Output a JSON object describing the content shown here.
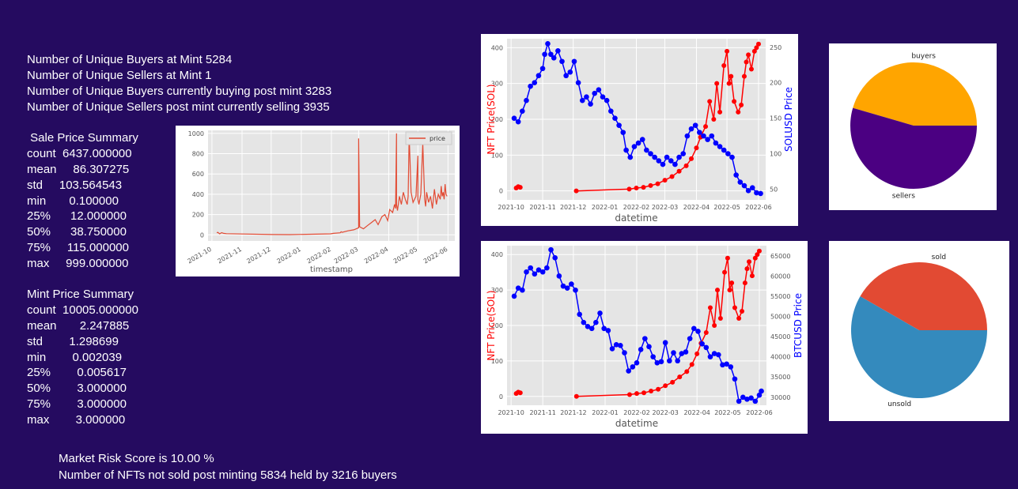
{
  "stats": {
    "unique_buyers_mint": "Number of Unique Buyers at Mint 5284",
    "unique_sellers_mint": "Number of Unique Sellers at Mint 1",
    "unique_buyers_post": "Number of Unique Buyers currently buying post mint 3283",
    "unique_sellers_post": "Number of Unique Sellers post mint currently selling 3935"
  },
  "sale_summary": {
    "title": " Sale Price Summary",
    "rows": [
      "count  6437.000000",
      "mean     86.307275",
      "std     103.564543",
      "min       0.100000",
      "25%      12.000000",
      "50%      38.750000",
      "75%     115.000000",
      "max     999.000000"
    ]
  },
  "mint_summary": {
    "title": "Mint Price Summary",
    "rows": [
      "count  10005.000000",
      "mean       2.247885",
      "std        1.298699",
      "min        0.002039",
      "25%        0.005617",
      "50%        3.000000",
      "75%        3.000000",
      "max        3.000000"
    ]
  },
  "footer": {
    "risk": "Market Risk Score is 10.00 %",
    "unsold": "Number of NFTs not sold post minting 5834 held by 3216 buyers"
  },
  "colors": {
    "background": "#250b60",
    "price_line": "#e24a33",
    "nft_red": "#ff0000",
    "sol_blue": "#0000ff",
    "buyers": "#ffa500",
    "sellers": "#4b0082",
    "sold": "#e24a33",
    "unsold": "#348abd",
    "plot_bg": "#e5e5e5"
  },
  "chart_data": [
    {
      "id": "sale",
      "type": "line",
      "title": "",
      "xlabel": "timestamp",
      "ylabel": "",
      "legend": [
        "price"
      ],
      "legend_position": "top-right",
      "x_ticks": [
        "2021-10",
        "2021-11",
        "2021-12",
        "2022-01",
        "2022-02",
        "2022-03",
        "2022-04",
        "2022-05",
        "2022-06"
      ],
      "y_ticks": [
        0,
        200,
        400,
        600,
        800,
        1000
      ],
      "xlim": [
        "2021-09-27",
        "2022-06-08"
      ],
      "ylim": [
        -60,
        1030
      ],
      "series": [
        {
          "name": "price",
          "x": [
            "2021-10-06",
            "2021-10-07",
            "2021-10-09",
            "2021-10-11",
            "2021-10-13",
            "2021-10-16",
            "2021-12-03",
            "2021-12-20",
            "2022-01-31",
            "2022-02-03",
            "2022-02-10",
            "2022-02-11",
            "2022-02-12",
            "2022-02-18",
            "2022-02-24",
            "2022-03-01",
            "2022-03-01",
            "2022-03-02",
            "2022-03-02",
            "2022-03-06",
            "2022-03-10",
            "2022-03-14",
            "2022-03-18",
            "2022-03-21",
            "2022-03-25",
            "2022-03-28",
            "2022-03-31",
            "2022-04-02",
            "2022-04-05",
            "2022-04-07",
            "2022-04-08",
            "2022-04-09",
            "2022-04-09",
            "2022-04-10",
            "2022-04-12",
            "2022-04-14",
            "2022-04-16",
            "2022-04-18",
            "2022-04-20",
            "2022-04-21",
            "2022-04-22",
            "2022-04-24",
            "2022-04-26",
            "2022-04-29",
            "2022-05-01",
            "2022-05-01",
            "2022-05-02",
            "2022-05-04",
            "2022-05-06",
            "2022-05-08",
            "2022-05-09",
            "2022-05-10",
            "2022-05-12",
            "2022-05-14",
            "2022-05-16",
            "2022-05-18",
            "2022-05-20",
            "2022-05-22",
            "2022-05-24",
            "2022-05-25",
            "2022-05-26",
            "2022-05-27",
            "2022-05-28",
            "2022-05-29",
            "2022-05-30",
            "2022-05-31"
          ],
          "values": [
            20,
            25,
            10,
            22,
            15,
            12,
            3,
            2,
            10,
            15,
            20,
            30,
            25,
            40,
            50,
            70,
            950,
            110,
            80,
            60,
            90,
            120,
            150,
            100,
            180,
            200,
            140,
            250,
            220,
            300,
            260,
            1000,
            300,
            240,
            380,
            300,
            420,
            350,
            300,
            380,
            980,
            420,
            320,
            380,
            780,
            350,
            300,
            400,
            900,
            350,
            280,
            420,
            320,
            380,
            260,
            450,
            300,
            400,
            350,
            480,
            380,
            420,
            350,
            500,
            400,
            380
          ]
        }
      ]
    },
    {
      "id": "nft_sol",
      "type": "line",
      "title": "",
      "xlabel": "datetime",
      "ylabel": "NFT Price(SOL)",
      "ylabel_right": "SOLUSD Price",
      "x_ticks": [
        "2021-10",
        "2021-11",
        "2021-12",
        "2022-01",
        "2022-02",
        "2022-03",
        "2022-04",
        "2022-05",
        "2022-06"
      ],
      "y_ticks": [
        0,
        100,
        200,
        300,
        400
      ],
      "y_right_ticks": [
        50,
        100,
        150,
        200,
        250
      ],
      "xlim": [
        "2021-09-27",
        "2022-06-08"
      ],
      "ylim": [
        -25,
        425
      ],
      "y_right_lim": [
        35,
        262
      ],
      "series": [
        {
          "name": "NFT Price(SOL)",
          "x": [
            "2021-10-06",
            "2021-10-08",
            "2021-10-10",
            "2021-12-04",
            "2022-01-25",
            "2022-02-01",
            "2022-02-08",
            "2022-02-15",
            "2022-02-22",
            "2022-03-01",
            "2022-03-08",
            "2022-03-15",
            "2022-03-22",
            "2022-03-27",
            "2022-04-01",
            "2022-04-05",
            "2022-04-10",
            "2022-04-14",
            "2022-04-18",
            "2022-04-21",
            "2022-04-24",
            "2022-04-28",
            "2022-05-01",
            "2022-05-03",
            "2022-05-05",
            "2022-05-08",
            "2022-05-12",
            "2022-05-15",
            "2022-05-18",
            "2022-05-20",
            "2022-05-22",
            "2022-05-25",
            "2022-05-28",
            "2022-05-30",
            "2022-06-01"
          ],
          "values": [
            8,
            12,
            10,
            0,
            5,
            8,
            10,
            15,
            20,
            30,
            40,
            55,
            70,
            90,
            120,
            150,
            180,
            250,
            200,
            300,
            220,
            350,
            390,
            300,
            320,
            250,
            220,
            240,
            320,
            360,
            380,
            340,
            390,
            400,
            410
          ]
        },
        {
          "name": "SOLUSD Price",
          "x": [
            "2021-10-04",
            "2021-10-08",
            "2021-10-12",
            "2021-10-16",
            "2021-10-20",
            "2021-10-24",
            "2021-10-28",
            "2021-11-01",
            "2021-11-03",
            "2021-11-06",
            "2021-11-09",
            "2021-11-12",
            "2021-11-16",
            "2021-11-20",
            "2021-11-24",
            "2021-11-28",
            "2021-12-02",
            "2021-12-06",
            "2021-12-10",
            "2021-12-14",
            "2021-12-18",
            "2021-12-22",
            "2021-12-26",
            "2021-12-30",
            "2022-01-03",
            "2022-01-07",
            "2022-01-11",
            "2022-01-15",
            "2022-01-19",
            "2022-01-22",
            "2022-01-26",
            "2022-01-30",
            "2022-02-03",
            "2022-02-07",
            "2022-02-11",
            "2022-02-15",
            "2022-02-19",
            "2022-02-23",
            "2022-02-27",
            "2022-03-03",
            "2022-03-07",
            "2022-03-11",
            "2022-03-15",
            "2022-03-19",
            "2022-03-23",
            "2022-03-27",
            "2022-03-31",
            "2022-04-04",
            "2022-04-08",
            "2022-04-12",
            "2022-04-16",
            "2022-04-20",
            "2022-04-24",
            "2022-04-28",
            "2022-05-02",
            "2022-05-06",
            "2022-05-10",
            "2022-05-14",
            "2022-05-18",
            "2022-05-22",
            "2022-05-26",
            "2022-05-30",
            "2022-06-03"
          ],
          "values": [
            150,
            145,
            160,
            175,
            195,
            200,
            210,
            220,
            240,
            255,
            240,
            235,
            245,
            230,
            210,
            215,
            230,
            200,
            175,
            180,
            170,
            185,
            190,
            180,
            175,
            160,
            150,
            140,
            130,
            105,
            95,
            110,
            115,
            120,
            105,
            100,
            95,
            90,
            85,
            95,
            90,
            85,
            95,
            100,
            125,
            135,
            140,
            130,
            125,
            120,
            125,
            115,
            110,
            105,
            100,
            95,
            70,
            60,
            55,
            48,
            52,
            45,
            44
          ]
        }
      ]
    },
    {
      "id": "nft_btc",
      "type": "line",
      "title": "",
      "xlabel": "datetime",
      "ylabel": "NFT Price(SOL)",
      "ylabel_right": "BTCUSD Price",
      "x_ticks": [
        "2021-10",
        "2021-11",
        "2021-12",
        "2022-01",
        "2022-02",
        "2022-03",
        "2022-04",
        "2022-05",
        "2022-06"
      ],
      "y_ticks": [
        0,
        100,
        200,
        300,
        400
      ],
      "y_right_ticks": [
        30000,
        35000,
        40000,
        45000,
        50000,
        55000,
        60000,
        65000
      ],
      "xlim": [
        "2021-09-27",
        "2022-06-08"
      ],
      "ylim": [
        -25,
        425
      ],
      "y_right_lim": [
        28000,
        67500
      ],
      "series": [
        {
          "name": "NFT Price(SOL)",
          "x": [
            "2021-10-06",
            "2021-10-08",
            "2021-10-10",
            "2021-12-04",
            "2022-01-25",
            "2022-02-01",
            "2022-02-08",
            "2022-02-15",
            "2022-02-22",
            "2022-03-01",
            "2022-03-08",
            "2022-03-15",
            "2022-03-22",
            "2022-03-27",
            "2022-04-01",
            "2022-04-05",
            "2022-04-10",
            "2022-04-14",
            "2022-04-18",
            "2022-04-21",
            "2022-04-24",
            "2022-04-28",
            "2022-05-01",
            "2022-05-03",
            "2022-05-05",
            "2022-05-08",
            "2022-05-12",
            "2022-05-15",
            "2022-05-18",
            "2022-05-20",
            "2022-05-22",
            "2022-05-25",
            "2022-05-28",
            "2022-05-30",
            "2022-06-01"
          ],
          "values": [
            8,
            12,
            10,
            0,
            5,
            8,
            10,
            15,
            20,
            30,
            40,
            55,
            70,
            90,
            120,
            150,
            180,
            250,
            200,
            300,
            220,
            350,
            390,
            300,
            320,
            250,
            220,
            240,
            320,
            360,
            380,
            340,
            390,
            400,
            410
          ]
        },
        {
          "name": "BTCUSD Price",
          "x": [
            "2021-10-04",
            "2021-10-08",
            "2021-10-12",
            "2021-10-16",
            "2021-10-20",
            "2021-10-24",
            "2021-10-28",
            "2021-11-01",
            "2021-11-05",
            "2021-11-09",
            "2021-11-13",
            "2021-11-17",
            "2021-11-21",
            "2021-11-25",
            "2021-11-29",
            "2021-12-03",
            "2021-12-07",
            "2021-12-11",
            "2021-12-15",
            "2021-12-19",
            "2021-12-23",
            "2021-12-27",
            "2021-12-31",
            "2022-01-04",
            "2022-01-08",
            "2022-01-12",
            "2022-01-16",
            "2022-01-20",
            "2022-01-24",
            "2022-01-28",
            "2022-02-01",
            "2022-02-05",
            "2022-02-09",
            "2022-02-13",
            "2022-02-17",
            "2022-02-21",
            "2022-02-25",
            "2022-03-01",
            "2022-03-05",
            "2022-03-09",
            "2022-03-13",
            "2022-03-17",
            "2022-03-21",
            "2022-03-25",
            "2022-03-29",
            "2022-04-02",
            "2022-04-06",
            "2022-04-10",
            "2022-04-14",
            "2022-04-18",
            "2022-04-22",
            "2022-04-26",
            "2022-04-30",
            "2022-05-04",
            "2022-05-08",
            "2022-05-12",
            "2022-05-16",
            "2022-05-20",
            "2022-05-24",
            "2022-05-28",
            "2022-06-01",
            "2022-06-03"
          ],
          "values": [
            55000,
            57000,
            56500,
            61000,
            62000,
            60500,
            61500,
            61000,
            62000,
            66500,
            64500,
            60000,
            57500,
            57000,
            58000,
            56500,
            50500,
            48500,
            47500,
            47000,
            48500,
            50800,
            47000,
            46500,
            42000,
            43000,
            42800,
            41000,
            36500,
            37500,
            38500,
            41800,
            44500,
            42500,
            40000,
            38500,
            38800,
            43500,
            39000,
            41000,
            39000,
            40800,
            41200,
            44500,
            47000,
            46300,
            43200,
            42300,
            40000,
            40800,
            40500,
            38000,
            38200,
            37500,
            34500,
            29000,
            30000,
            29500,
            29800,
            29000,
            30500,
            31500
          ]
        }
      ]
    },
    {
      "id": "buyers_sellers",
      "type": "pie",
      "labels": [
        "buyers",
        "sellers"
      ],
      "values": [
        3283,
        3935
      ],
      "start_angle_deg": 0,
      "colors": [
        "#ffa500",
        "#4b0082"
      ]
    },
    {
      "id": "sold_unsold",
      "type": "pie",
      "labels": [
        "sold",
        "unsold"
      ],
      "values": [
        4171,
        5834
      ],
      "start_angle_deg": 0,
      "colors": [
        "#e24a33",
        "#348abd"
      ]
    }
  ]
}
